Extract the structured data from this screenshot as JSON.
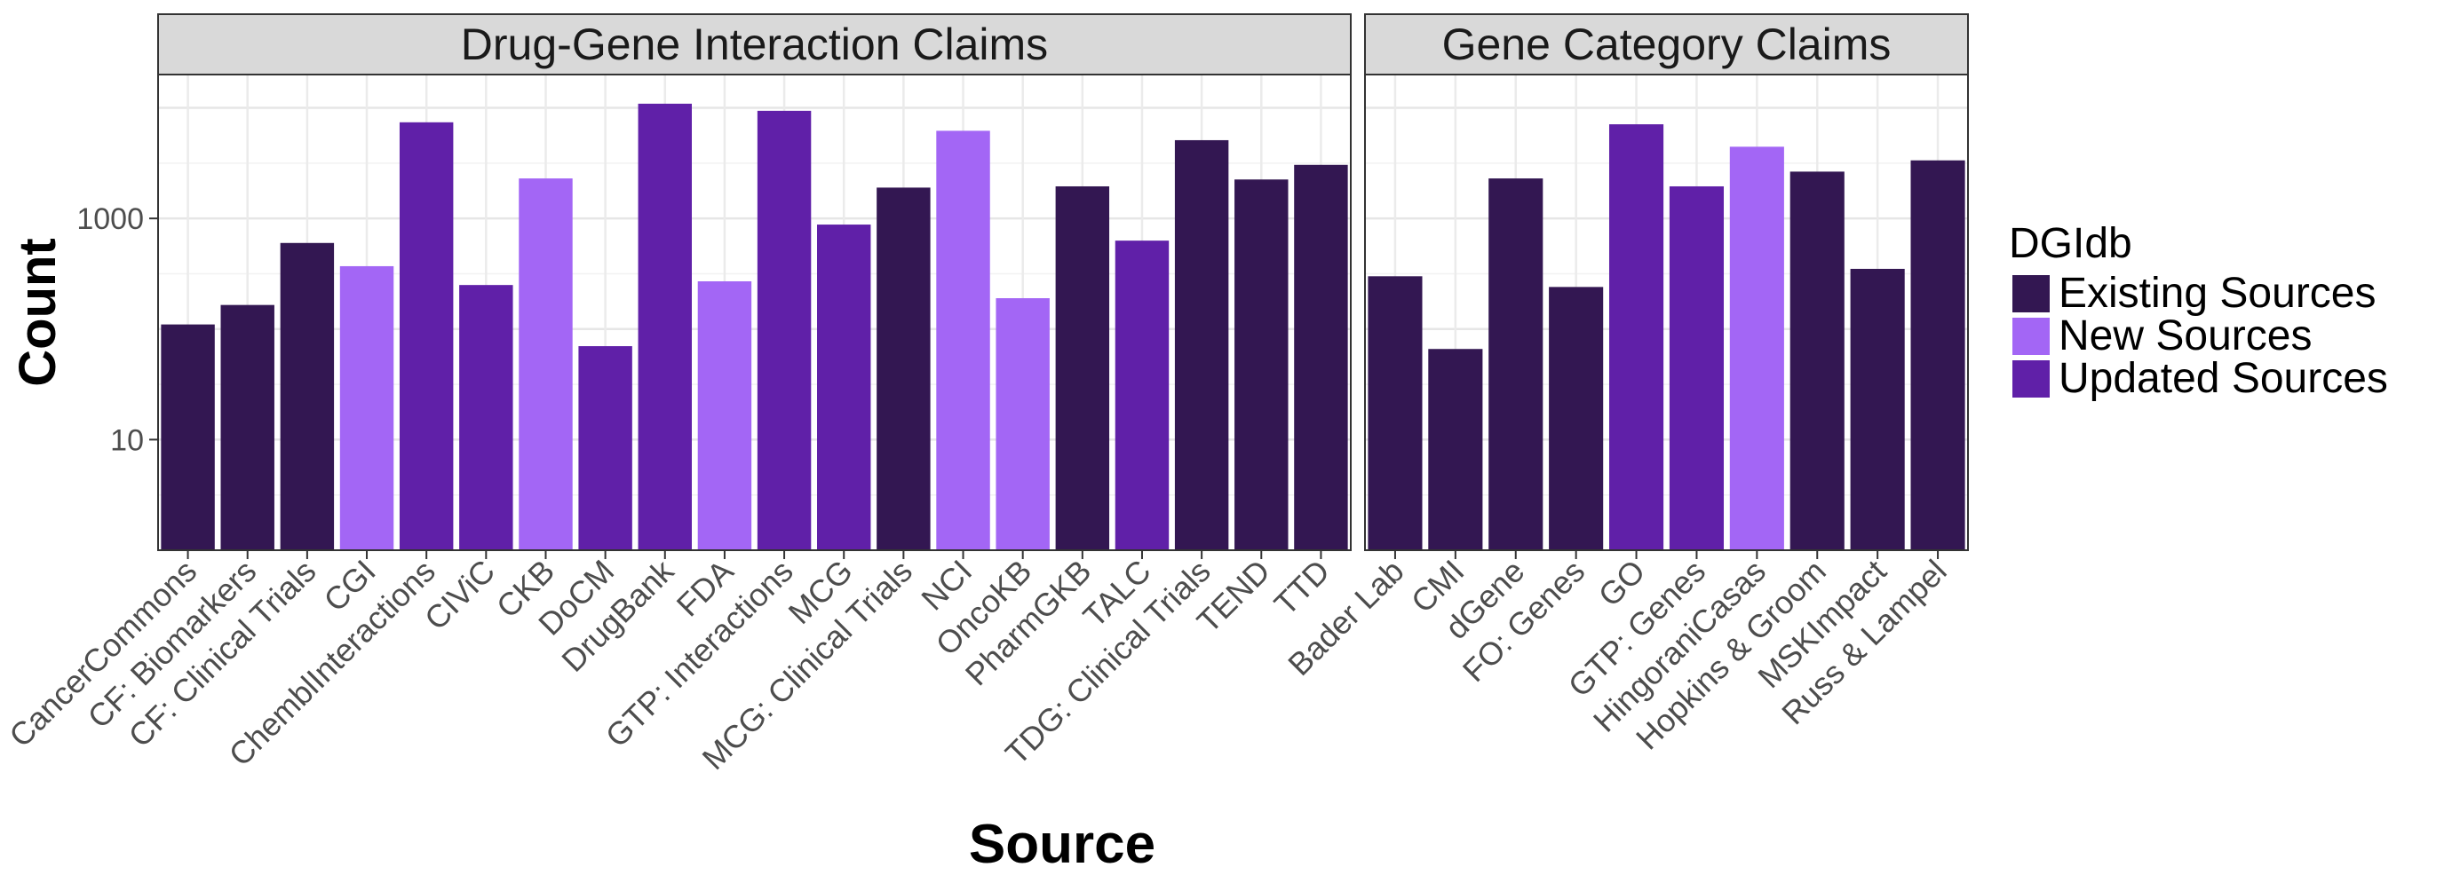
{
  "chart_data": {
    "type": "bar",
    "facet_variable": "claim type",
    "y_axis": {
      "label": "Count",
      "scale": "log10",
      "ticks": [
        10,
        1000
      ],
      "tick_labels": [
        "10",
        "1000"
      ],
      "range": [
        1,
        20000
      ]
    },
    "x_axis": {
      "label": "Source"
    },
    "legend": {
      "title": "DGIdb",
      "position": "right",
      "items": [
        {
          "key": "existing",
          "label": "Existing Sources",
          "color": "#331752"
        },
        {
          "key": "new",
          "label": "New Sources",
          "color": "#A366F5"
        },
        {
          "key": "updated",
          "label": "Updated Sources",
          "color": "#6020A8"
        }
      ]
    },
    "grid": true,
    "panels": [
      {
        "title": "Drug-Gene Interaction Claims",
        "categories": [
          "CancerCommons",
          "CF: Biomarkers",
          "CF: Clinical Trials",
          "CGI",
          "ChemblInteractions",
          "CIViC",
          "CKB",
          "DoCM",
          "DrugBank",
          "FDA",
          "GTP: Interactions",
          "MCG",
          "MCG: Clinical Trials",
          "NCI",
          "OncoKB",
          "PharmGKB",
          "TALC",
          "TDG: Clinical Trials",
          "TEND",
          "TTD"
        ],
        "values": [
          110,
          165,
          600,
          370,
          7400,
          250,
          2300,
          70,
          10900,
          270,
          9400,
          880,
          1900,
          6200,
          190,
          1950,
          630,
          5100,
          2250,
          3050
        ],
        "groups": [
          "existing",
          "existing",
          "existing",
          "new",
          "updated",
          "updated",
          "new",
          "updated",
          "updated",
          "new",
          "updated",
          "updated",
          "existing",
          "new",
          "new",
          "existing",
          "updated",
          "existing",
          "existing",
          "existing"
        ]
      },
      {
        "title": "Gene Category Claims",
        "categories": [
          "Bader Lab",
          "CMI",
          "dGene",
          "FO: Genes",
          "GO",
          "GTP: Genes",
          "HingoraniCasas",
          "Hopkins & Groom",
          "MSKImpact",
          "Russ & Lampel"
        ],
        "values": [
          300,
          66,
          2300,
          240,
          7100,
          1950,
          4450,
          2650,
          350,
          3350
        ],
        "groups": [
          "existing",
          "existing",
          "existing",
          "existing",
          "updated",
          "updated",
          "new",
          "existing",
          "existing",
          "existing"
        ]
      }
    ]
  }
}
